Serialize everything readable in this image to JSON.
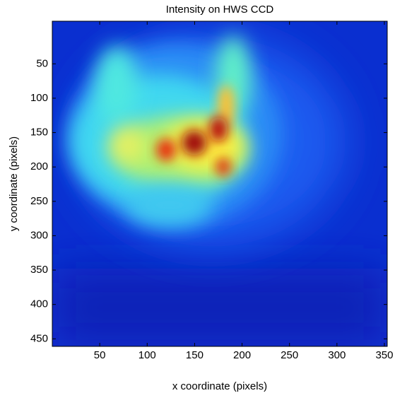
{
  "chart_data": {
    "type": "image",
    "title": "Intensity on HWS CCD",
    "x_label": "x coordinate (pixels)",
    "y_label": "y coordinate (pixels)",
    "xlim": [
      0,
      353
    ],
    "xticks": [
      50,
      100,
      150,
      200,
      250,
      300,
      350
    ],
    "ylim": [
      -12,
      461
    ],
    "yticks": [
      50,
      100,
      150,
      200,
      250,
      300,
      350,
      400,
      450
    ],
    "y_reversed": true,
    "colormap": "jet"
  }
}
